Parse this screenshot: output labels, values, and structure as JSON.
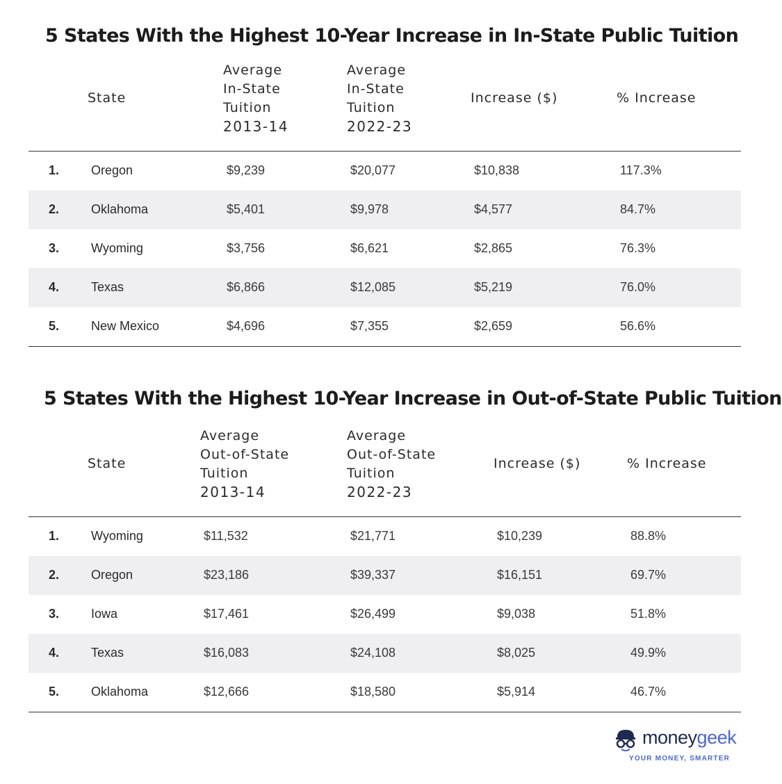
{
  "chart_data": [
    {
      "type": "table",
      "title": "5 States With the Highest 10-Year Increase in In-State Public Tuition",
      "columns": {
        "state": "State",
        "avg_a": [
          "Average",
          "In-State",
          "Tuition",
          "2013-14"
        ],
        "avg_b": [
          "Average",
          "In-State",
          "Tuition",
          "2022-23"
        ],
        "increase": "Increase ($)",
        "pct": "% Increase"
      },
      "rows": [
        {
          "rank": "1.",
          "state": "Oregon",
          "avg_a": "$9,239",
          "avg_b": "$20,077",
          "increase": "$10,838",
          "pct": "117.3%"
        },
        {
          "rank": "2.",
          "state": "Oklahoma",
          "avg_a": "$5,401",
          "avg_b": "$9,978",
          "increase": "$4,577",
          "pct": "84.7%"
        },
        {
          "rank": "3.",
          "state": "Wyoming",
          "avg_a": "$3,756",
          "avg_b": "$6,621",
          "increase": "$2,865",
          "pct": "76.3%"
        },
        {
          "rank": "4.",
          "state": "Texas",
          "avg_a": "$6,866",
          "avg_b": "$12,085",
          "increase": "$5,219",
          "pct": "76.0%"
        },
        {
          "rank": "5.",
          "state": "New Mexico",
          "avg_a": "$4,696",
          "avg_b": "$7,355",
          "increase": "$2,659",
          "pct": "56.6%"
        }
      ]
    },
    {
      "type": "table",
      "title": "5 States With the Highest 10-Year Increase in Out-of-State Public Tuition",
      "columns": {
        "state": "State",
        "avg_a": [
          "Average",
          "Out-of-State",
          "Tuition",
          "2013-14"
        ],
        "avg_b": [
          "Average",
          "Out-of-State",
          "Tuition",
          "2022-23"
        ],
        "increase": "Increase ($)",
        "pct": "% Increase"
      },
      "rows": [
        {
          "rank": "1.",
          "state": "Wyoming",
          "avg_a": "$11,532",
          "avg_b": "$21,771",
          "increase": "$10,239",
          "pct": "88.8%"
        },
        {
          "rank": "2.",
          "state": "Oregon",
          "avg_a": "$23,186",
          "avg_b": "$39,337",
          "increase": "$16,151",
          "pct": "69.7%"
        },
        {
          "rank": "3.",
          "state": "Iowa",
          "avg_a": "$17,461",
          "avg_b": "$26,499",
          "increase": "$9,038",
          "pct": "51.8%"
        },
        {
          "rank": "4.",
          "state": "Texas",
          "avg_a": "$16,083",
          "avg_b": "$24,108",
          "increase": "$8,025",
          "pct": "49.9%"
        },
        {
          "rank": "5.",
          "state": "Oklahoma",
          "avg_a": "$12,666",
          "avg_b": "$18,580",
          "increase": "$5,914",
          "pct": "46.7%"
        }
      ]
    }
  ],
  "logo": {
    "name_part1": "money",
    "name_part2": "geek",
    "tagline": "YOUR MONEY, SMARTER",
    "icon": "moneygeek-logo-icon",
    "colors": {
      "navy": "#1e2b4f",
      "blue": "#4a67d6"
    }
  },
  "colors": {
    "row_shade": "#efeff2",
    "rule": "#333333"
  }
}
